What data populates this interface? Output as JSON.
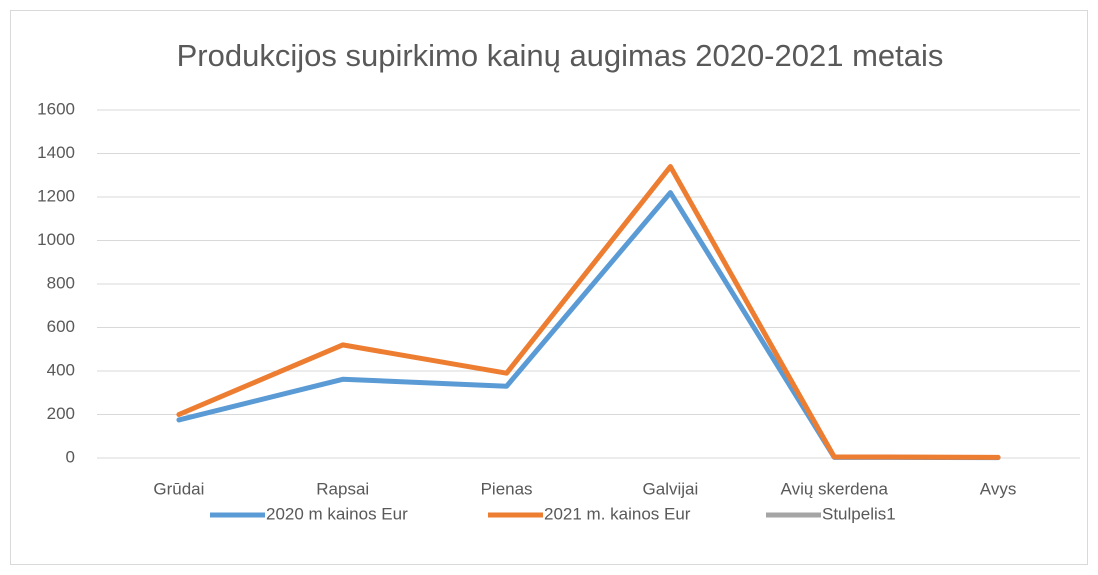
{
  "chart_data": {
    "type": "line",
    "title": "Produkcijos supirkimo kainų augimas 2020-2021 metais",
    "categories": [
      "Grūdai",
      "Rapsai",
      "Pienas",
      "Galvijai",
      "Avių skerdena",
      "Avys"
    ],
    "series": [
      {
        "name": "2020 m kainos Eur",
        "color": "#5b9bd5",
        "values": [
          175,
          362,
          330,
          1220,
          3,
          2
        ]
      },
      {
        "name": "2021 m. kainos Eur",
        "color": "#ed7d31",
        "values": [
          200,
          520,
          390,
          1340,
          5,
          3
        ]
      },
      {
        "name": "Stulpelis1",
        "color": "#a5a5a5",
        "values": [
          null,
          null,
          null,
          null,
          null,
          null
        ]
      }
    ],
    "ylim": [
      0,
      1600
    ],
    "yticks": [
      0,
      200,
      400,
      600,
      800,
      1000,
      1200,
      1400,
      1600
    ],
    "grid": true,
    "legend": "bottom"
  }
}
